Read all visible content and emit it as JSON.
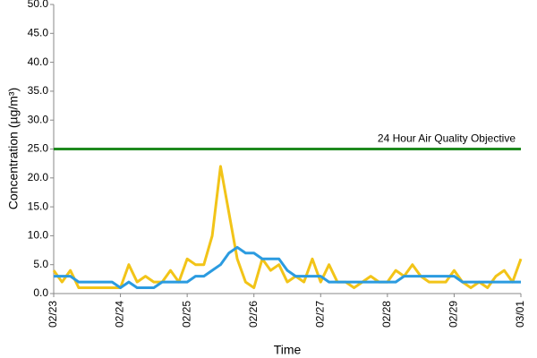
{
  "chart_data": {
    "type": "line",
    "xlabel": "Time",
    "ylabel": "Concentration (µg/m³)",
    "categories": [
      "02/23",
      null,
      null,
      null,
      null,
      null,
      null,
      null,
      "02/24",
      null,
      null,
      null,
      null,
      null,
      null,
      null,
      "02/25",
      null,
      null,
      null,
      null,
      null,
      null,
      null,
      "02/26",
      null,
      null,
      null,
      null,
      null,
      null,
      null,
      "02/27",
      null,
      null,
      null,
      null,
      null,
      null,
      null,
      "02/28",
      null,
      null,
      null,
      null,
      null,
      null,
      null,
      "02/29",
      null,
      null,
      null,
      null,
      null,
      null,
      null,
      "03/01"
    ],
    "series": [
      {
        "color": "#f2c418",
        "values": [
          4,
          2,
          4,
          1,
          1,
          1,
          1,
          1,
          1,
          5,
          2,
          3,
          2,
          2,
          4,
          2,
          6,
          5,
          5,
          10,
          22,
          14,
          6,
          2,
          1,
          6,
          4,
          5,
          2,
          3,
          2,
          6,
          2,
          5,
          2,
          2,
          1,
          2,
          3,
          2,
          2,
          4,
          3,
          5,
          3,
          2,
          2,
          2,
          4,
          2,
          1,
          2,
          1,
          3,
          4,
          2,
          6
        ]
      },
      {
        "color": "#2b9be0",
        "values": [
          3,
          3,
          3,
          2,
          2,
          2,
          2,
          2,
          1,
          2,
          1,
          1,
          1,
          2,
          2,
          2,
          2,
          3,
          3,
          4,
          5,
          7,
          8,
          7,
          7,
          6,
          6,
          6,
          4,
          3,
          3,
          3,
          3,
          2,
          2,
          2,
          2,
          2,
          2,
          2,
          2,
          2,
          3,
          3,
          3,
          3,
          3,
          3,
          3,
          2,
          2,
          2,
          2,
          2,
          2,
          2,
          2
        ]
      }
    ],
    "reference_line": {
      "value": 25,
      "label": "24 Hour Air Quality Objective",
      "color": "#1e8a1e"
    },
    "ylim": [
      0,
      50
    ],
    "yticks": [
      {
        "value": 0,
        "label": "0.0"
      },
      {
        "value": 5,
        "label": "5.0"
      },
      {
        "value": 10,
        "label": "10.0"
      },
      {
        "value": 15,
        "label": "15.0"
      },
      {
        "value": 20,
        "label": "20.0"
      },
      {
        "value": 25,
        "label": "25.0"
      },
      {
        "value": 30,
        "label": "30.0"
      },
      {
        "value": 35,
        "label": "35.0"
      },
      {
        "value": 40,
        "label": "40.0"
      },
      {
        "value": 45,
        "label": "45.0"
      },
      {
        "value": 50,
        "label": "50.0"
      }
    ],
    "grid": false
  }
}
